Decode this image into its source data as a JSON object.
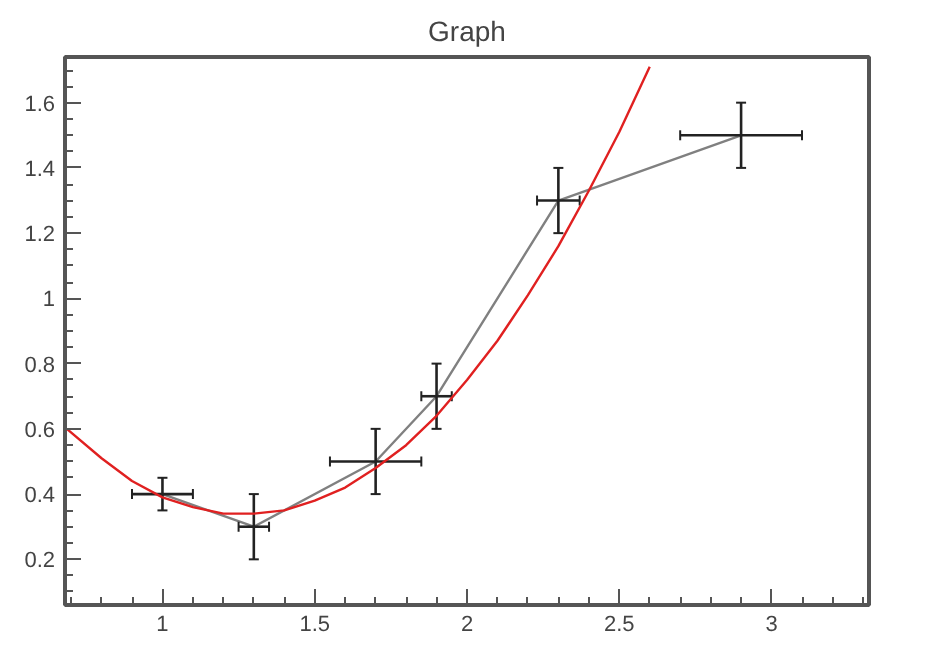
{
  "chart_data": {
    "type": "line",
    "title": "Graph",
    "grid": false,
    "marker": "none",
    "line_style": "solid",
    "xlim": [
      0.68,
      3.32
    ],
    "ylim": [
      0.06,
      1.74
    ],
    "xticks": [
      {
        "value": 0.7,
        "label": null
      },
      {
        "value": 0.8,
        "label": null
      },
      {
        "value": 0.9,
        "label": null
      },
      1,
      {
        "value": 1.1,
        "label": null
      },
      {
        "value": 1.2,
        "label": null
      },
      {
        "value": 1.3,
        "label": null
      },
      {
        "value": 1.4,
        "label": null
      },
      1.5,
      {
        "value": 1.6,
        "label": null
      },
      {
        "value": 1.7,
        "label": null
      },
      {
        "value": 1.8,
        "label": null
      },
      {
        "value": 1.9,
        "label": null
      },
      2,
      {
        "value": 2.1,
        "label": null
      },
      {
        "value": 2.2,
        "label": null
      },
      {
        "value": 2.3,
        "label": null
      },
      {
        "value": 2.4,
        "label": null
      },
      2.5,
      {
        "value": 2.6,
        "label": null
      },
      {
        "value": 2.7,
        "label": null
      },
      {
        "value": 2.8,
        "label": null
      },
      {
        "value": 2.9,
        "label": null
      },
      3,
      {
        "value": 3.1,
        "label": null
      },
      {
        "value": 3.2,
        "label": null
      },
      {
        "value": 3.3,
        "label": null
      }
    ],
    "yticks": [
      {
        "value": 0.1,
        "label": null
      },
      {
        "value": 0.15,
        "label": null
      },
      0.2,
      {
        "value": 0.25,
        "label": null
      },
      {
        "value": 0.3,
        "label": null
      },
      {
        "value": 0.35,
        "label": null
      },
      0.4,
      {
        "value": 0.45,
        "label": null
      },
      {
        "value": 0.5,
        "label": null
      },
      {
        "value": 0.55,
        "label": null
      },
      0.6,
      {
        "value": 0.65,
        "label": null
      },
      {
        "value": 0.7,
        "label": null
      },
      {
        "value": 0.75,
        "label": null
      },
      0.8,
      {
        "value": 0.85,
        "label": null
      },
      {
        "value": 0.9,
        "label": null
      },
      {
        "value": 0.95,
        "label": null
      },
      1,
      {
        "value": 1.05,
        "label": null
      },
      {
        "value": 1.1,
        "label": null
      },
      {
        "value": 1.15,
        "label": null
      },
      1.2,
      {
        "value": 1.25,
        "label": null
      },
      {
        "value": 1.3,
        "label": null
      },
      {
        "value": 1.35,
        "label": null
      },
      1.4,
      {
        "value": 1.45,
        "label": null
      },
      {
        "value": 1.5,
        "label": null
      },
      {
        "value": 1.55,
        "label": null
      },
      1.6,
      {
        "value": 1.65,
        "label": null
      },
      {
        "value": 1.7,
        "label": null
      }
    ],
    "series": [
      {
        "color": "#808080",
        "x": [
          1.0,
          1.3,
          1.7,
          1.9,
          2.3,
          2.9
        ],
        "values": [
          0.4,
          0.3,
          0.5,
          0.7,
          1.3,
          1.5
        ],
        "errors": [
          0.05,
          0.1,
          0.1,
          0.1,
          0.1,
          0.1
        ],
        "xerrors": [
          0.1,
          0.05,
          0.15,
          0.05,
          0.07,
          0.2
        ]
      },
      {
        "color": "#e02020",
        "x": [
          0.686,
          0.8,
          0.9,
          1.0,
          1.1,
          1.2,
          1.3,
          1.4,
          1.5,
          1.6,
          1.7,
          1.8,
          1.9,
          2.0,
          2.1,
          2.2,
          2.3,
          2.4,
          2.5,
          2.6
        ],
        "values": [
          0.6,
          0.51,
          0.44,
          0.39,
          0.36,
          0.34,
          0.34,
          0.35,
          0.38,
          0.42,
          0.48,
          0.55,
          0.64,
          0.75,
          0.87,
          1.01,
          1.16,
          1.33,
          1.51,
          1.71
        ]
      }
    ]
  }
}
